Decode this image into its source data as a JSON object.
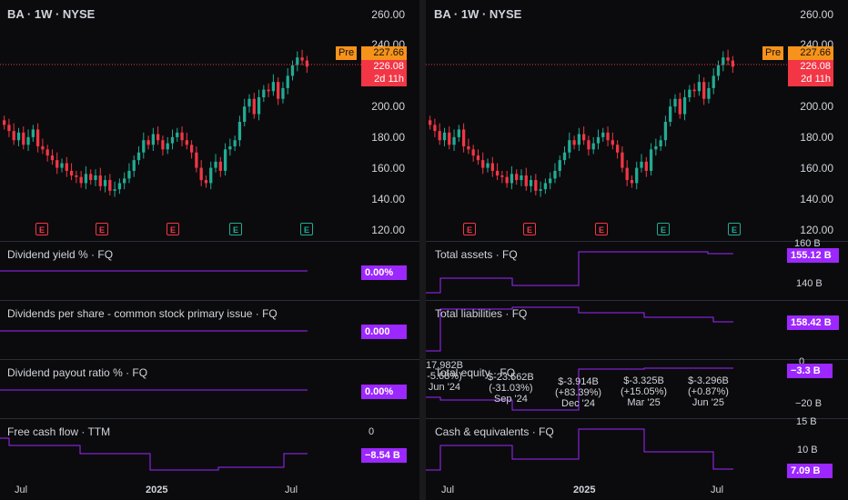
{
  "left": {
    "title": "BA · 1W · NYSE",
    "price_axis": [
      "260.00",
      "240.00",
      "200.00",
      "180.00",
      "160.00",
      "140.00",
      "120.00"
    ],
    "pre_label": "Pre",
    "pre_value": "227.66",
    "last_value": "226.08",
    "countdown": "2d 11h",
    "earnings_marker": "E",
    "panes": [
      {
        "title": "Dividend yield % · FQ",
        "value": "0.00%"
      },
      {
        "title": "Dividends per share - common stock primary issue · FQ",
        "value": "0.000"
      },
      {
        "title": "Dividend payout ratio % · FQ",
        "value": "0.00%"
      },
      {
        "title": "Free cash flow · TTM",
        "value": "−8.54 B",
        "axis": "0"
      }
    ],
    "x_axis": [
      "Jul",
      "2025",
      "Jul"
    ]
  },
  "right": {
    "title": "BA · 1W · NYSE",
    "price_axis": [
      "260.00",
      "240.00",
      "200.00",
      "180.00",
      "160.00",
      "140.00",
      "120.00"
    ],
    "pre_label": "Pre",
    "pre_value": "227.66",
    "last_value": "226.08",
    "countdown": "2d 11h",
    "earnings_marker": "E",
    "panes": [
      {
        "title": "Total assets · FQ",
        "value": "155.12 B",
        "axis": [
          "160 B",
          "140 B"
        ]
      },
      {
        "title": "Total liabilities · FQ",
        "value": "158.42 B"
      },
      {
        "title": "Total equity · FQ",
        "value": "−3.3 B",
        "axis": [
          "0",
          "−20 B"
        ]
      },
      {
        "title": "Cash & equivalents · FQ",
        "value": "7.09 B",
        "axis": [
          "15 B",
          "10 B"
        ]
      }
    ],
    "equity_labels": [
      {
        "line1": "17.982B",
        "line2": "-5.68%)",
        "line3": "Jun '24"
      },
      {
        "line1": "$-23.562B",
        "line2": "(-31.03%)",
        "line3": "Sep '24"
      },
      {
        "line1": "$-3.914B",
        "line2": "(+83.39%)",
        "line3": "Dec '24"
      },
      {
        "line1": "$-3.325B",
        "line2": "(+15.05%)",
        "line3": "Mar '25"
      },
      {
        "line1": "$-3.296B",
        "line2": "(+0.87%)",
        "line3": "Jun '25"
      }
    ],
    "x_axis": [
      "Jul",
      "2025",
      "Jul"
    ]
  },
  "colors": {
    "up": "#22ab94",
    "down": "#f23645",
    "purple": "#9c27ff",
    "pre": "#f7931a"
  },
  "chart_data": {
    "type": "candlestick",
    "series_close": [
      188,
      184,
      178,
      183,
      175,
      180,
      185,
      174,
      172,
      168,
      165,
      160,
      163,
      158,
      155,
      154,
      150,
      156,
      152,
      155,
      148,
      152,
      145,
      146,
      150,
      153,
      158,
      165,
      170,
      178,
      175,
      182,
      178,
      172,
      176,
      180,
      183,
      178,
      175,
      170,
      160,
      152,
      150,
      160,
      164,
      158,
      172,
      174,
      178,
      190,
      200,
      205,
      195,
      206,
      211,
      210,
      216,
      205,
      212,
      220,
      227,
      232,
      230,
      226
    ]
  }
}
